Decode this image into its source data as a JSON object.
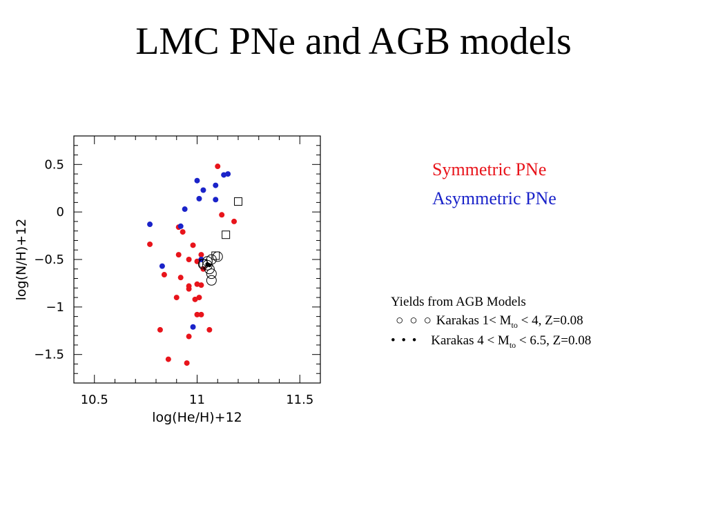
{
  "slide": {
    "title": "LMC PNe and AGB models",
    "legend": {
      "symmetric": "Symmetric PNe",
      "asymmetric": "Asymmetric PNe",
      "symmetric_color": "#e8141b",
      "asymmetric_color": "#1a23c9"
    },
    "yields": {
      "heading": "Yields from AGB Models",
      "row1_symbols": "○ ○ ○",
      "row1_text_a": "Karakas 1< M",
      "row1_sub": "to",
      "row1_text_b": " < 4, Z=0.08",
      "row2_symbols": "• • •",
      "row2_text_a": "Karakas 4 < M",
      "row2_sub": "to",
      "row2_text_b": " < 6.5, Z=0.08"
    }
  },
  "chart_data": {
    "type": "scatter",
    "xlabel": "log(He/H)+12",
    "ylabel": "log(N/H)+12",
    "xlim": [
      10.4,
      11.6
    ],
    "ylim": [
      -1.8,
      0.8
    ],
    "xticks": [
      10.5,
      11,
      11.5
    ],
    "xtick_labels": [
      "10.5",
      "11",
      "11.5"
    ],
    "yticks": [
      0.5,
      0,
      -0.5,
      -1,
      -1.5
    ],
    "ytick_labels": [
      "0.5",
      "0",
      "−0.5",
      "−1",
      "−1.5"
    ],
    "grid": false,
    "series": [
      {
        "name": "Symmetric PNe",
        "color": "#e8141b",
        "marker": "filled-circle",
        "points": [
          [
            11.1,
            0.48
          ],
          [
            11.12,
            -0.03
          ],
          [
            11.18,
            -0.1
          ],
          [
            10.77,
            -0.34
          ],
          [
            10.91,
            -0.16
          ],
          [
            10.93,
            -0.21
          ],
          [
            10.98,
            -0.35
          ],
          [
            10.91,
            -0.45
          ],
          [
            10.96,
            -0.5
          ],
          [
            11.02,
            -0.45
          ],
          [
            11.0,
            -0.52
          ],
          [
            11.03,
            -0.6
          ],
          [
            10.92,
            -0.69
          ],
          [
            10.96,
            -0.78
          ],
          [
            10.96,
            -0.81
          ],
          [
            11.0,
            -0.76
          ],
          [
            11.02,
            -0.77
          ],
          [
            10.84,
            -0.66
          ],
          [
            10.9,
            -0.9
          ],
          [
            10.99,
            -0.92
          ],
          [
            11.01,
            -0.9
          ],
          [
            11.0,
            -1.08
          ],
          [
            11.02,
            -1.08
          ],
          [
            10.96,
            -1.31
          ],
          [
            11.06,
            -1.24
          ],
          [
            10.82,
            -1.24
          ],
          [
            10.86,
            -1.55
          ],
          [
            10.95,
            -1.59
          ]
        ]
      },
      {
        "name": "Asymmetric PNe",
        "color": "#1a23c9",
        "marker": "filled-circle",
        "points": [
          [
            11.13,
            0.39
          ],
          [
            11.15,
            0.4
          ],
          [
            11.0,
            0.33
          ],
          [
            11.03,
            0.23
          ],
          [
            11.09,
            0.28
          ],
          [
            11.01,
            0.14
          ],
          [
            11.09,
            0.13
          ],
          [
            10.94,
            0.03
          ],
          [
            10.77,
            -0.13
          ],
          [
            10.92,
            -0.15
          ],
          [
            11.02,
            -0.5
          ],
          [
            10.83,
            -0.57
          ],
          [
            10.98,
            -1.21
          ]
        ]
      },
      {
        "name": "Karakas 1< Mto < 4, Z=0.08",
        "color": "#000000",
        "marker": "open-circle",
        "points": [
          [
            11.03,
            -0.55
          ],
          [
            11.05,
            -0.52
          ],
          [
            11.07,
            -0.5
          ],
          [
            11.1,
            -0.47
          ],
          [
            11.05,
            -0.56
          ],
          [
            11.06,
            -0.6
          ],
          [
            11.07,
            -0.65
          ],
          [
            11.07,
            -0.72
          ]
        ]
      },
      {
        "name": "",
        "color": "#000000",
        "marker": "open-square",
        "points": [
          [
            11.2,
            0.11
          ],
          [
            11.14,
            -0.24
          ],
          [
            11.09,
            -0.46
          ],
          [
            11.03,
            -0.54
          ]
        ]
      },
      {
        "name": "Karakas 4 < Mto < 6.5, Z=0.08",
        "color": "#000000",
        "marker": "filled-circle",
        "points": [
          [
            11.05,
            -0.55
          ],
          [
            11.06,
            -0.56
          ]
        ]
      }
    ]
  }
}
